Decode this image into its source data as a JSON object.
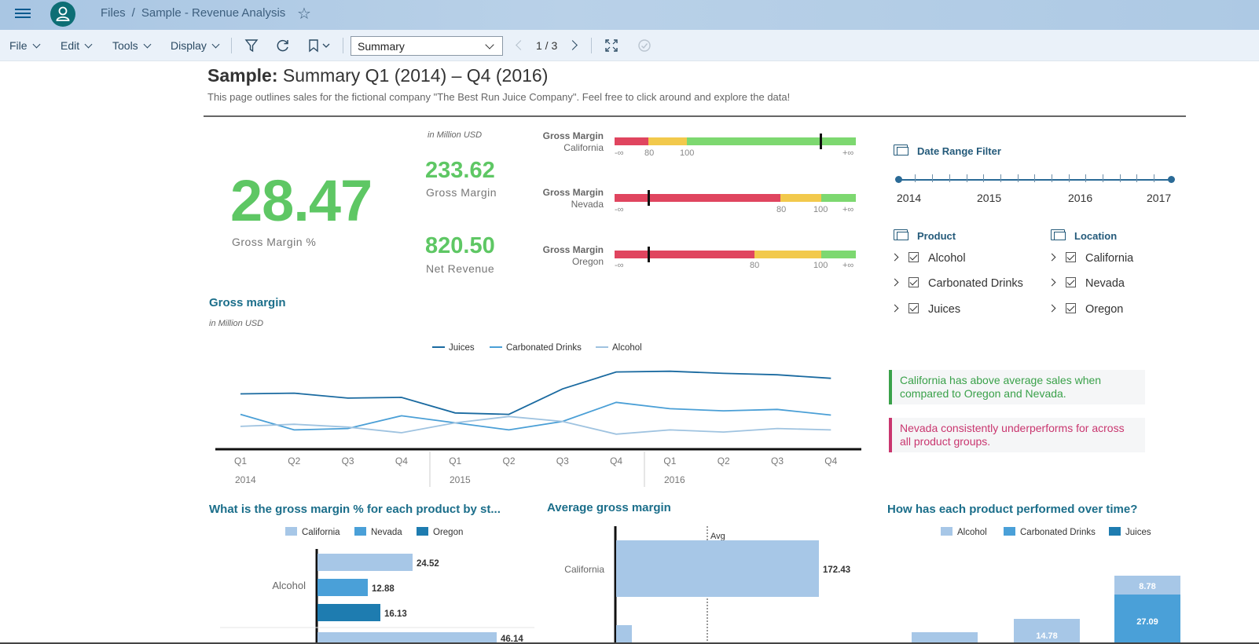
{
  "shell": {
    "breadcrumb_root": "Files",
    "breadcrumb_sep": "/",
    "breadcrumb_current": "Sample - Revenue Analysis"
  },
  "toolbar": {
    "menus": [
      "File",
      "Edit",
      "Tools",
      "Display"
    ],
    "page_select": "Summary",
    "pager": "1 / 3"
  },
  "header": {
    "title_bold": "Sample:",
    "title_rest": "Summary Q1 (2014) – Q4 (2016)",
    "subtitle": "This page outlines sales for the fictional company \"The Best Run Juice Company\". Feel free to click around and explore the data!"
  },
  "kpis": {
    "unit_note": "in Million USD",
    "gm_pct_value": "28.47",
    "gm_pct_label": "Gross Margin %",
    "gm_value": "233.62",
    "gm_label": "Gross Margin",
    "nr_value": "820.50",
    "nr_label": "Net Revenue"
  },
  "bullets": [
    {
      "title": "Gross Margin",
      "region": "California",
      "ticks": [
        "-∞",
        "80",
        "100",
        "+∞"
      ]
    },
    {
      "title": "Gross Margin",
      "region": "Nevada",
      "ticks": [
        "-∞",
        "80",
        "100",
        "+∞"
      ]
    },
    {
      "title": "Gross Margin",
      "region": "Oregon",
      "ticks": [
        "-∞",
        "80",
        "100",
        "+∞"
      ]
    }
  ],
  "filters": {
    "date_title": "Date Range Filter",
    "years": [
      "2014",
      "2015",
      "2016",
      "2017"
    ],
    "product_title": "Product",
    "products": [
      "Alcohol",
      "Carbonated Drinks",
      "Juices"
    ],
    "location_title": "Location",
    "locations": [
      "California",
      "Nevada",
      "Oregon"
    ]
  },
  "insights": {
    "good": "California has above average sales when compared to Oregon and Nevada.",
    "bad": "Nevada consistently underperforms for across all product groups."
  },
  "colors": {
    "green": "#5ec764",
    "red": "#e0455f",
    "yellow": "#f2c94c",
    "light": "#a7c7e7",
    "mid": "#4aa0d8",
    "dark": "#1e7cb0"
  },
  "line_chart": {
    "title": "Gross margin",
    "unit_note": "in Million USD",
    "legend": [
      "Juices",
      "Carbonated Drinks",
      "Alcohol"
    ],
    "quarters": [
      "Q1",
      "Q2",
      "Q3",
      "Q4",
      "Q1",
      "Q2",
      "Q3",
      "Q4",
      "Q1",
      "Q2",
      "Q3",
      "Q4"
    ],
    "years": [
      "2014",
      "2015",
      "2016"
    ]
  },
  "chart_data": [
    {
      "type": "line",
      "title": "Gross margin",
      "ylabel": "in Million USD",
      "categories": [
        "2014 Q1",
        "2014 Q2",
        "2014 Q3",
        "2014 Q4",
        "2015 Q1",
        "2015 Q2",
        "2015 Q3",
        "2015 Q4",
        "2016 Q1",
        "2016 Q2",
        "2016 Q3",
        "2016 Q4"
      ],
      "ylim": [
        0,
        100
      ],
      "series": [
        {
          "name": "Juices",
          "values": [
            65,
            66,
            59,
            60,
            38,
            36,
            72,
            96,
            97,
            94,
            92,
            87
          ]
        },
        {
          "name": "Carbonated Drinks",
          "values": [
            36,
            14,
            16,
            34,
            24,
            14,
            26,
            53,
            44,
            41,
            43,
            35
          ]
        },
        {
          "name": "Alcohol",
          "values": [
            19,
            22,
            18,
            10,
            24,
            33,
            26,
            8,
            14,
            11,
            16,
            14
          ]
        }
      ]
    },
    {
      "type": "bar",
      "title": "What is the gross margin % for each product by st...",
      "categories": [
        "Alcohol"
      ],
      "series": [
        {
          "name": "California",
          "values": [
            24.52
          ]
        },
        {
          "name": "Nevada",
          "values": [
            12.88
          ]
        },
        {
          "name": "Oregon",
          "values": [
            16.13
          ]
        }
      ],
      "extra_partial_bar": 46.14
    },
    {
      "type": "bar",
      "title": "Average gross margin",
      "categories": [
        "California"
      ],
      "values": [
        172.43
      ],
      "reference_line": "Avg"
    },
    {
      "type": "bar",
      "title": "How has each product performed over time?",
      "legend": [
        "Alcohol",
        "Carbonated Drinks",
        "Juices"
      ],
      "stack_labels": [
        "14.78",
        "8.78",
        "27.09"
      ]
    }
  ],
  "bar_chart_1": {
    "title": "What is the gross margin % for each product by st...",
    "legend": [
      "California",
      "Nevada",
      "Oregon"
    ],
    "category": "Alcohol",
    "values": [
      "24.52",
      "12.88",
      "16.13",
      "46.14"
    ]
  },
  "bar_chart_2": {
    "title": "Average gross margin",
    "category": "California",
    "value": "172.43",
    "avg_label": "Avg"
  },
  "bar_chart_3": {
    "title": "How has each product performed over time?",
    "legend": [
      "Alcohol",
      "Carbonated Drinks",
      "Juices"
    ],
    "labels": [
      "14.78",
      "8.78",
      "27.09"
    ]
  }
}
